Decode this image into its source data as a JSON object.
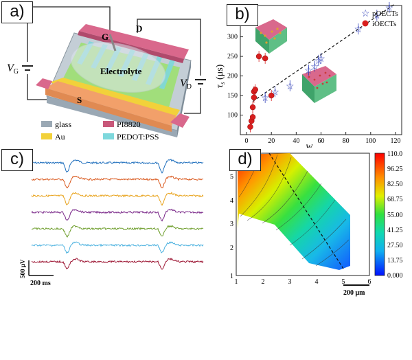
{
  "panels": {
    "a": {
      "label": "a)",
      "device": {
        "electrolyte": "Electrolyte",
        "gate": "G",
        "drain": "D",
        "source": "S",
        "vg_symbol": "V",
        "vg_sub": "G",
        "vd_symbol": "V",
        "vd_sub": "D"
      },
      "legend": [
        {
          "text": "glass",
          "color": "#9aa8b4"
        },
        {
          "text": "PI8820",
          "color": "#c8587a"
        },
        {
          "text": "Au",
          "color": "#f2d13a"
        },
        {
          "text": "PEDOT:PSS",
          "color": "#7ed8dc"
        }
      ]
    },
    "b": {
      "label": "b)",
      "legend": [
        {
          "text": "pOECTs",
          "marker": "star"
        },
        {
          "text": "iOECTs",
          "marker": "ball"
        }
      ],
      "chart_data": {
        "type": "scatter",
        "ylabel_main": "τ",
        "ylabel_sub": "s",
        "ylabel_unit": " (μs)",
        "xlabel_visible": "W",
        "xlim": [
          -5,
          125
        ],
        "ylim": [
          50,
          380
        ],
        "xticks": [
          0,
          20,
          40,
          60,
          80,
          100,
          120
        ],
        "yticks": [
          100,
          150,
          200,
          250,
          300
        ],
        "series": [
          {
            "name": "pOECTs",
            "marker": "star",
            "color": "#2f3fb8",
            "x": [
              15,
              23,
              35,
              50,
              55,
              58,
              60,
              90,
              105,
              115
            ],
            "y": [
              145,
              160,
              175,
              215,
              225,
              240,
              245,
              320,
              355,
              375
            ]
          },
          {
            "name": "iOECTs",
            "marker": "ball",
            "color": "#d81e1e",
            "x": [
              3,
              4,
              5,
              5,
              6,
              6,
              7,
              10,
              15,
              20
            ],
            "y": [
              70,
              85,
              95,
              120,
              145,
              160,
              165,
              250,
              245,
              150
            ]
          }
        ],
        "fit": {
          "x": [
            5,
            120
          ],
          "y": [
            135,
            385
          ],
          "style": "dashed"
        }
      }
    },
    "c": {
      "label": "c)",
      "scalebar_v": "500 μV",
      "scalebar_h": "200 ms",
      "trace_colors": [
        "#1f6fbd",
        "#d9561a",
        "#e8a21a",
        "#7b2a8a",
        "#6e9e2c",
        "#4fb3e0",
        "#9b1230"
      ]
    },
    "d": {
      "label": "d)",
      "xticks": [
        "1",
        "2",
        "3",
        "4",
        "5",
        "6"
      ],
      "yticks": [
        "1",
        "2",
        "3",
        "4",
        "5"
      ],
      "colorbar": [
        "110.0",
        "96.25",
        "82.50",
        "68.75",
        "55.00",
        "41.25",
        "27.50",
        "13.75",
        "0.000"
      ],
      "scalebar": "200 μm"
    }
  }
}
